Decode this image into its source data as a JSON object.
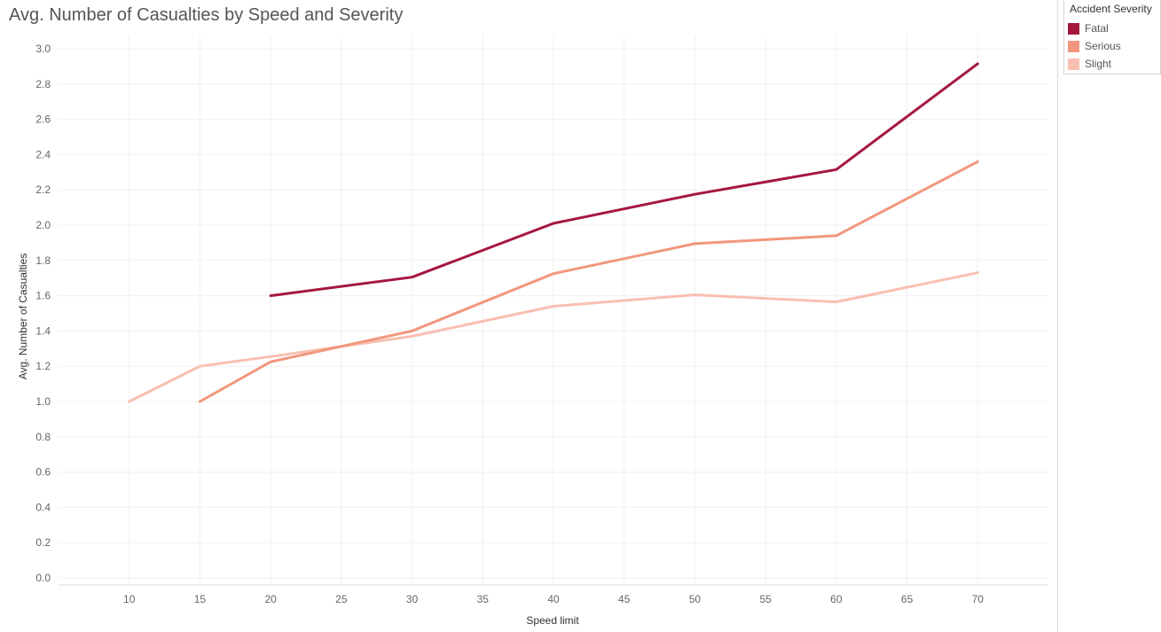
{
  "chart_data": {
    "type": "line",
    "title": "Avg. Number of Casualties by Speed and Severity",
    "xlabel": "Speed limit",
    "ylabel": "Avg. Number of Casualties",
    "xlim": [
      5,
      75
    ],
    "ylim": [
      0,
      3.0
    ],
    "x_ticks": [
      10,
      15,
      20,
      25,
      30,
      35,
      40,
      45,
      50,
      55,
      60,
      65,
      70
    ],
    "y_ticks": [
      0.0,
      0.2,
      0.4,
      0.6,
      0.8,
      1.0,
      1.2,
      1.4,
      1.6,
      1.8,
      2.0,
      2.2,
      2.4,
      2.6,
      2.8,
      3.0
    ],
    "grid": true,
    "legend_position": "top-right",
    "legend_title": "Accident Severity",
    "series": [
      {
        "name": "Fatal",
        "color": "#a5173f",
        "x": [
          20,
          30,
          40,
          50,
          60,
          70
        ],
        "y": [
          1.6,
          1.705,
          2.01,
          2.175,
          2.315,
          2.915
        ]
      },
      {
        "name": "Serious",
        "color": "#f2977d",
        "x": [
          15,
          20,
          30,
          40,
          50,
          60,
          70
        ],
        "y": [
          1.0,
          1.225,
          1.4,
          1.725,
          1.895,
          1.94,
          2.36
        ]
      },
      {
        "name": "Slight",
        "color": "#f9bfb1",
        "x": [
          10,
          15,
          20,
          30,
          40,
          50,
          60,
          70
        ],
        "y": [
          1.0,
          1.2,
          1.255,
          1.37,
          1.54,
          1.605,
          1.565,
          1.73
        ]
      }
    ]
  }
}
